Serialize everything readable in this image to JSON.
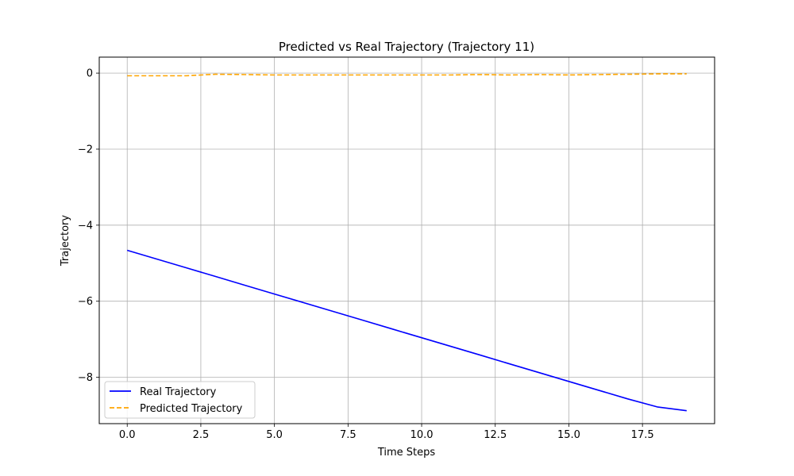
{
  "chart_data": {
    "type": "line",
    "title": "Predicted vs Real Trajectory (Trajectory 11)",
    "xlabel": "Time Steps",
    "ylabel": "Trajectory",
    "xlim": [
      -0.95,
      19.95
    ],
    "ylim": [
      -9.22,
      0.42
    ],
    "xticks": [
      0.0,
      2.5,
      5.0,
      7.5,
      10.0,
      12.5,
      15.0,
      17.5
    ],
    "xtick_labels": [
      "0.0",
      "2.5",
      "5.0",
      "7.5",
      "10.0",
      "12.5",
      "15.0",
      "17.5"
    ],
    "yticks": [
      0,
      -2,
      -4,
      -6,
      -8
    ],
    "ytick_labels": [
      "0",
      "−2",
      "−4",
      "−6",
      "−8"
    ],
    "grid": true,
    "legend_position": "lower-left",
    "x": [
      0,
      1,
      2,
      3,
      4,
      5,
      6,
      7,
      8,
      9,
      10,
      11,
      12,
      13,
      14,
      15,
      16,
      17,
      18,
      19
    ],
    "series": [
      {
        "name": "Real Trajectory",
        "color": "#0000ff",
        "style": "solid",
        "values": [
          -4.66,
          -4.89,
          -5.12,
          -5.35,
          -5.58,
          -5.81,
          -6.04,
          -6.27,
          -6.5,
          -6.73,
          -6.96,
          -7.19,
          -7.42,
          -7.65,
          -7.88,
          -8.11,
          -8.34,
          -8.57,
          -8.78,
          -8.88
        ]
      },
      {
        "name": "Predicted Trajectory",
        "color": "#ffa500",
        "style": "dashed",
        "values": [
          -0.07,
          -0.07,
          -0.07,
          -0.03,
          -0.04,
          -0.05,
          -0.05,
          -0.05,
          -0.05,
          -0.05,
          -0.05,
          -0.05,
          -0.04,
          -0.05,
          -0.04,
          -0.05,
          -0.04,
          -0.03,
          -0.02,
          -0.02
        ]
      }
    ]
  }
}
